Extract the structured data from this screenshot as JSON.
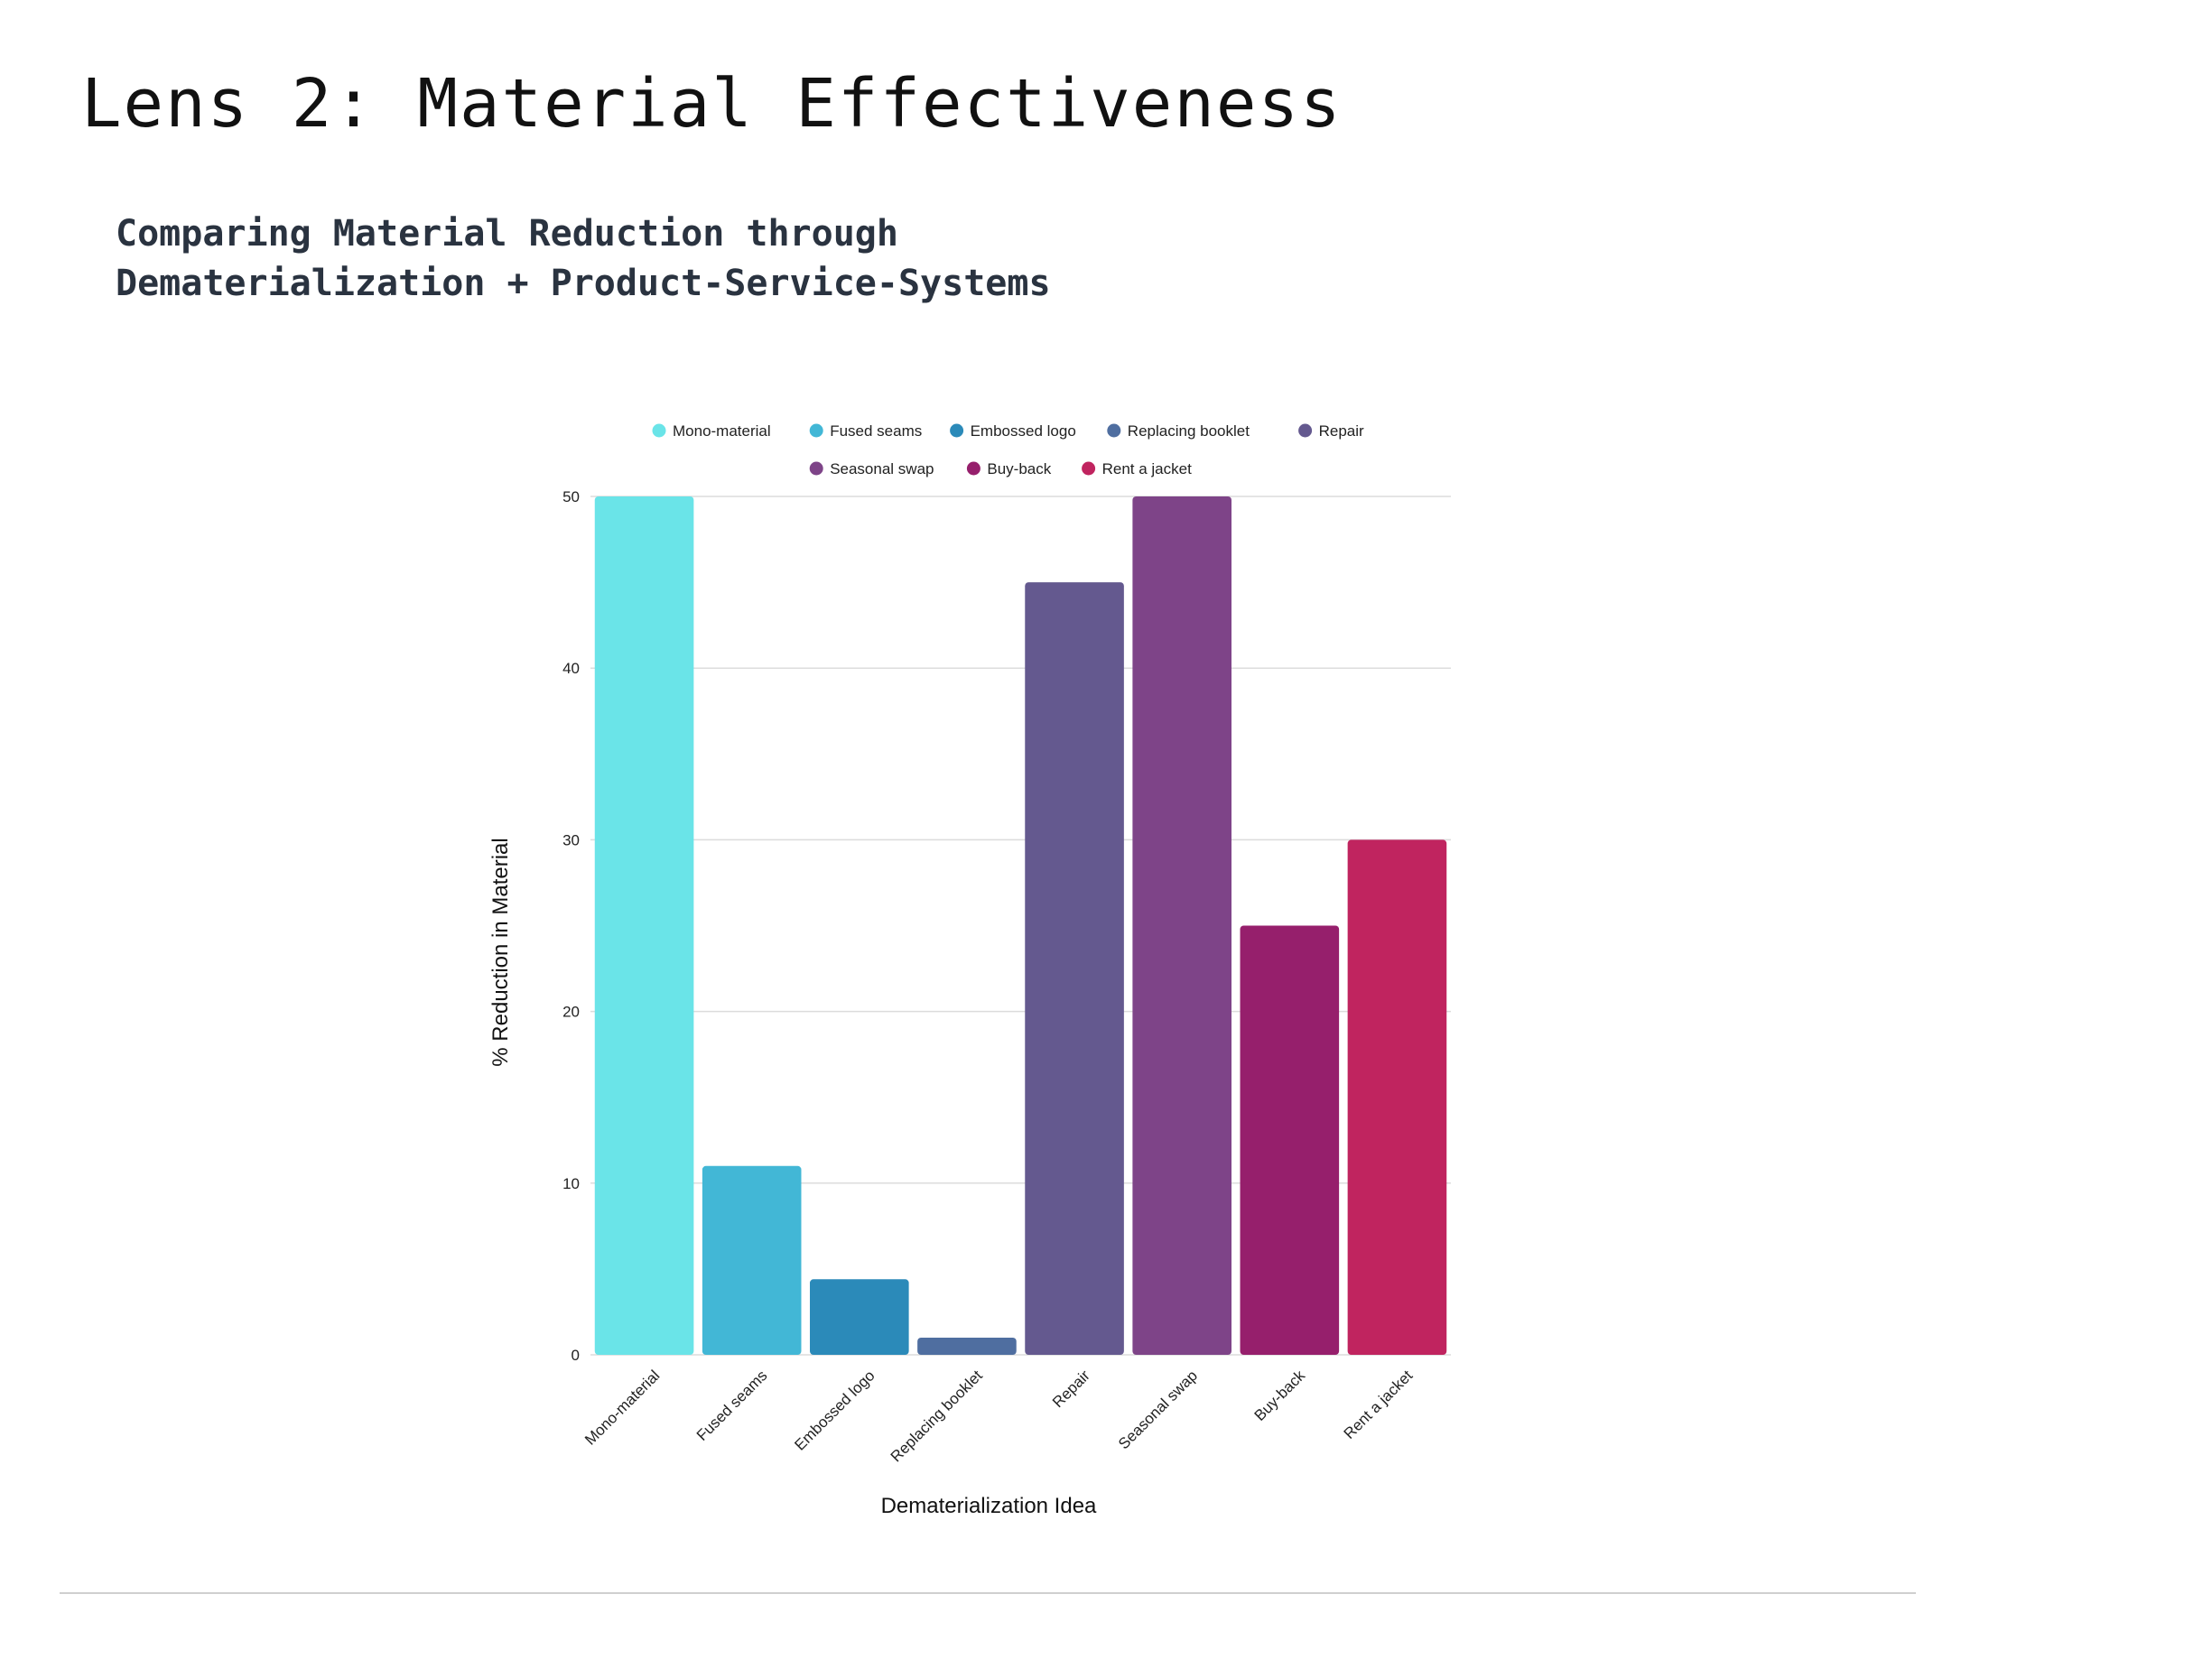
{
  "slide": {
    "title": "Lens 2: Material Effectiveness",
    "subtitle_line1": "Comparing Material Reduction through",
    "subtitle_line2": "Dematerialization + Product-Service-Systems"
  },
  "chart_data": {
    "type": "bar",
    "categories": [
      "Mono-material",
      "Fused seams",
      "Embossed logo",
      "Replacing booklet",
      "Repair",
      "Seasonal swap",
      "Buy-back",
      "Rent a jacket"
    ],
    "values": [
      50,
      11,
      4.4,
      1,
      45,
      50,
      25,
      30
    ],
    "colors": [
      "#6ae4e8",
      "#42b7d6",
      "#2b8ab9",
      "#4f6ea0",
      "#64598f",
      "#7e4488",
      "#961f6c",
      "#c0245f"
    ],
    "title": "",
    "xlabel": "Dematerialization Idea",
    "ylabel": "% Reduction in Material",
    "ylim": [
      0,
      50
    ],
    "yticks": [
      "0",
      "10",
      "20",
      "30",
      "40",
      "50"
    ],
    "legend": {
      "position": "top",
      "entries": [
        "Mono-material",
        "Fused seams",
        "Embossed logo",
        "Replacing booklet",
        "Repair",
        "Seasonal swap",
        "Buy-back",
        "Rent a jacket"
      ]
    },
    "grid": true
  }
}
